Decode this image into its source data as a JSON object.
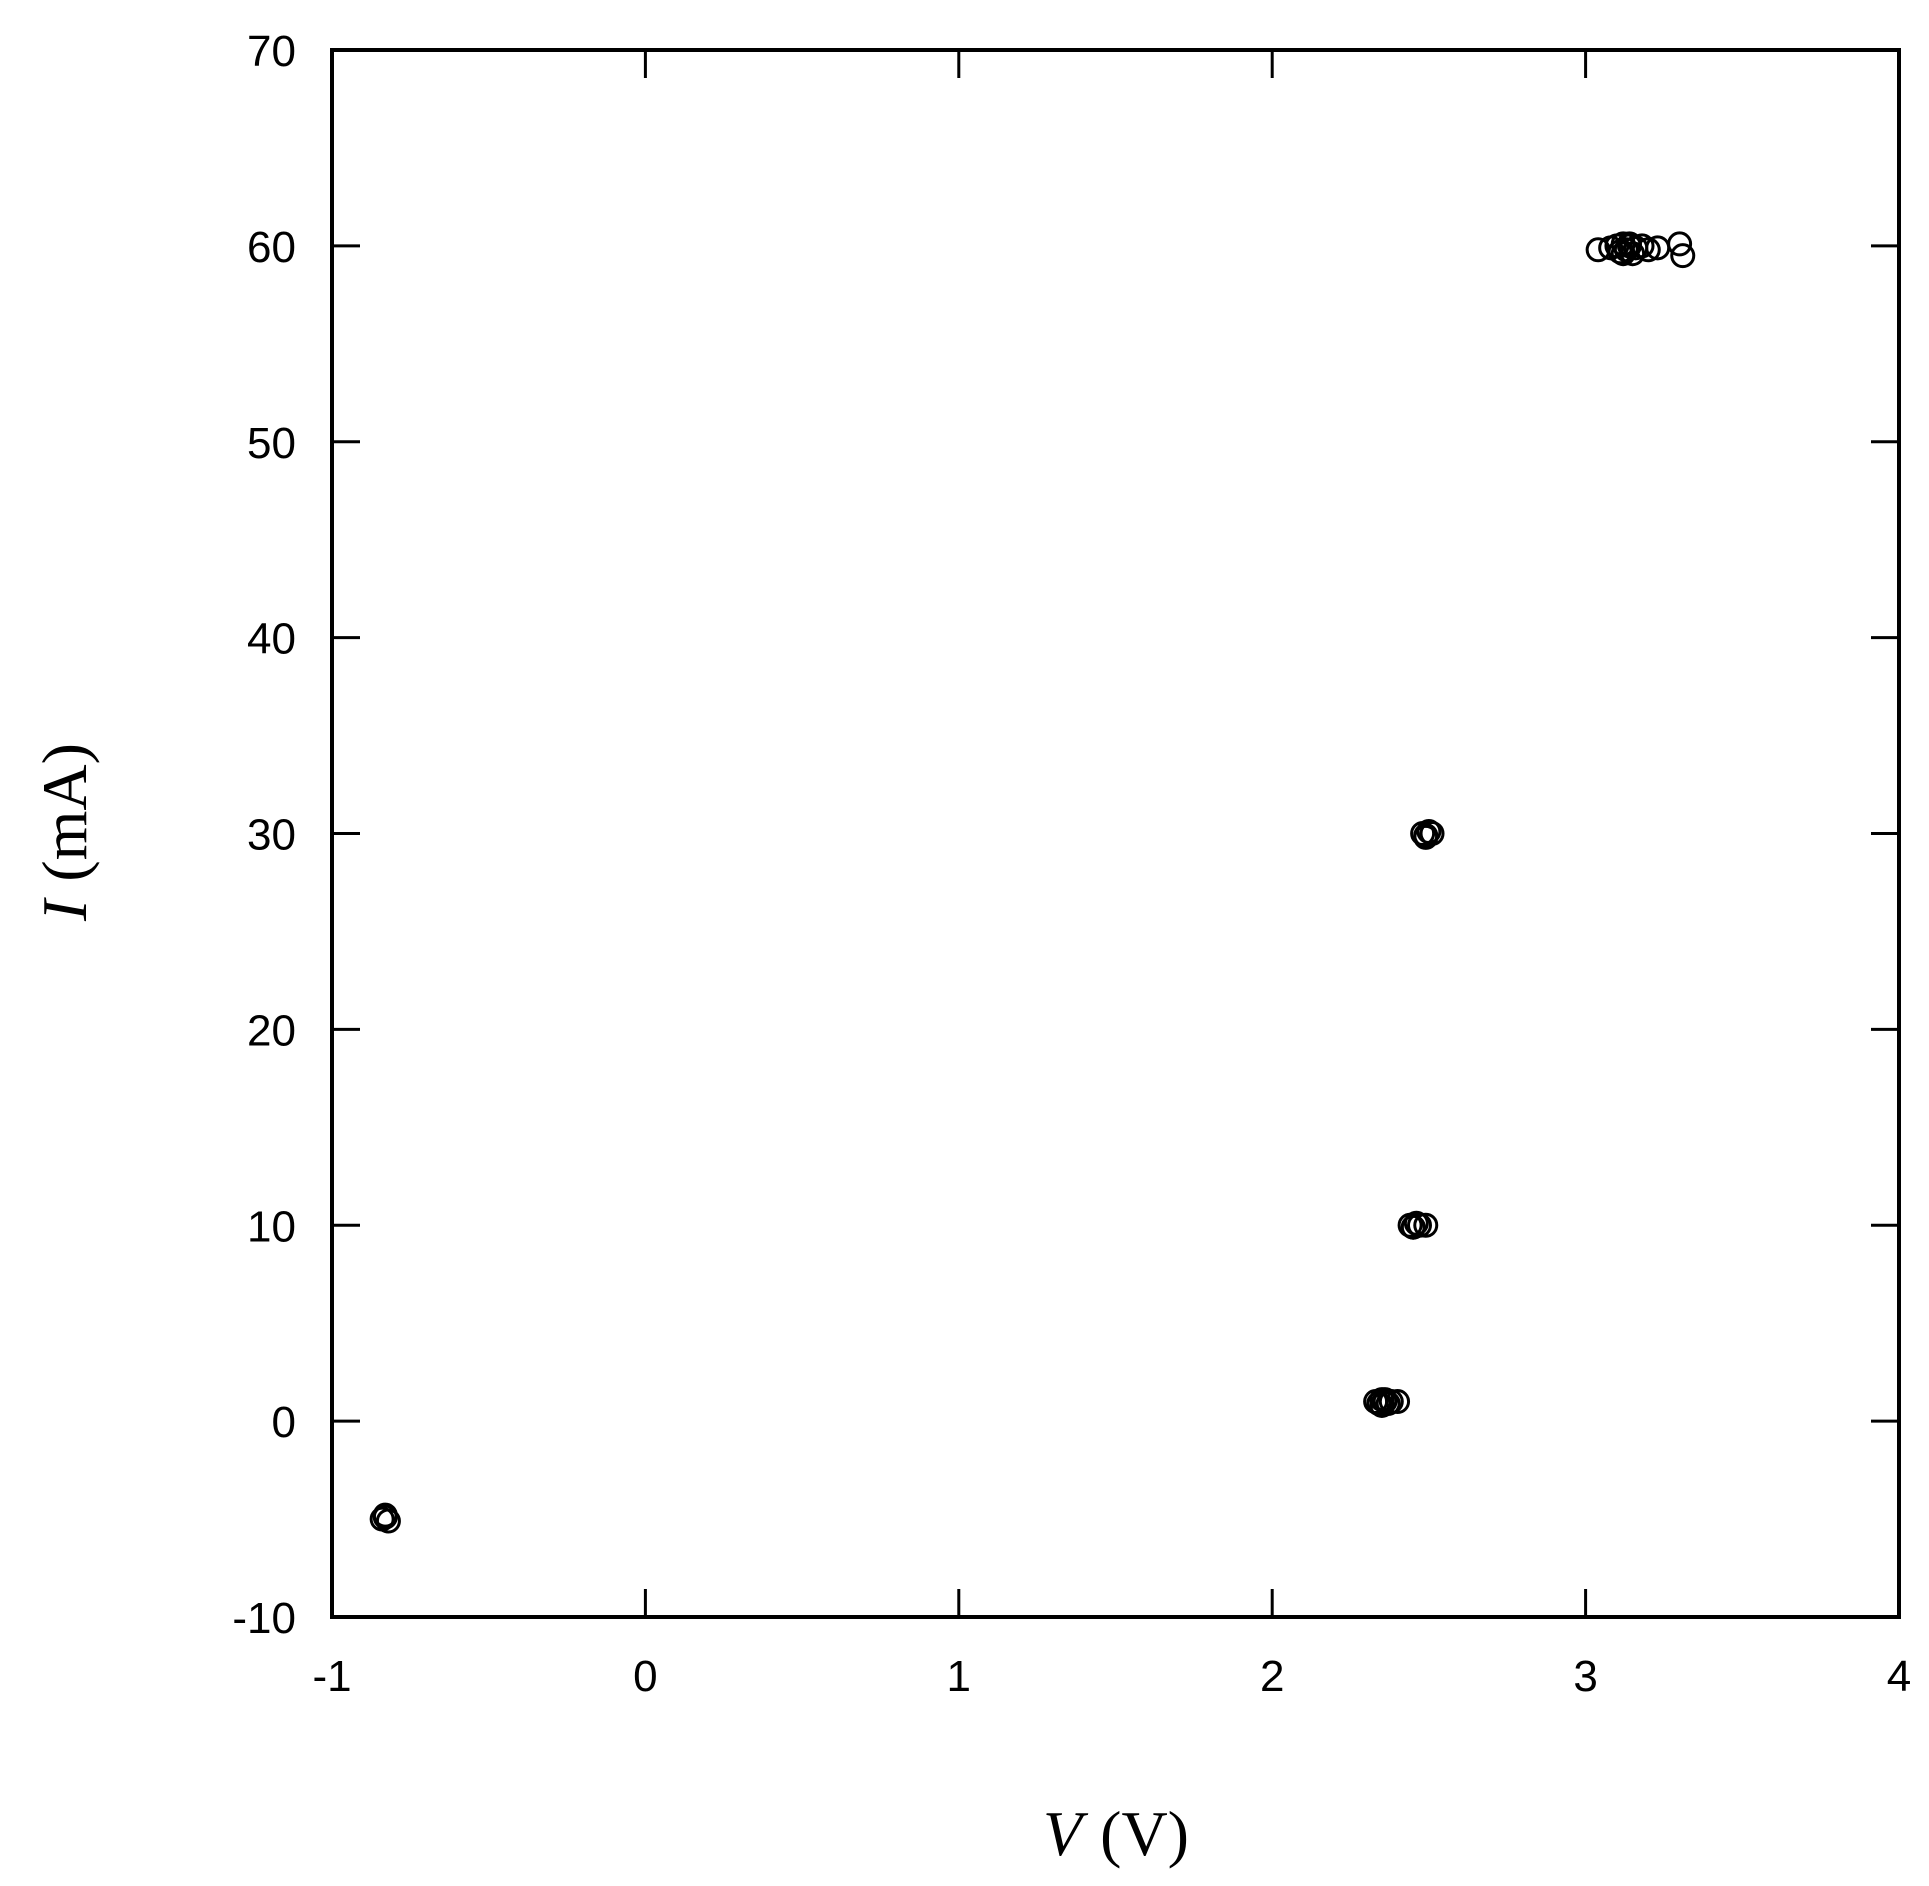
{
  "chart_data": {
    "type": "scatter",
    "title": "",
    "xlabel": {
      "symbol": "V",
      "unit": "(V)"
    },
    "ylabel": {
      "symbol": "I",
      "unit": "(mA)"
    },
    "xlim": [
      -1,
      4
    ],
    "ylim": [
      -10,
      70
    ],
    "xticks": [
      -1,
      0,
      1,
      2,
      3,
      4
    ],
    "yticks": [
      -10,
      0,
      10,
      20,
      30,
      40,
      50,
      60,
      70
    ],
    "grid": false,
    "legend": "none",
    "marker": "open-circle",
    "color": "#000000",
    "series": [
      {
        "x": [
          -0.84,
          -0.83,
          -0.82,
          -0.83,
          2.33,
          2.34,
          2.35,
          2.36,
          2.37,
          2.38,
          2.4,
          2.35,
          2.36,
          2.44,
          2.45,
          2.46,
          2.47,
          2.49,
          2.45,
          2.48,
          2.49,
          2.5,
          2.51,
          2.49,
          3.04,
          3.08,
          3.1,
          3.11,
          3.12,
          3.13,
          3.14,
          3.15,
          3.16,
          3.18,
          3.2,
          3.23,
          3.3,
          3.31,
          3.12,
          3.14
        ],
        "y": [
          -5.0,
          -4.8,
          -5.1,
          -4.9,
          1.0,
          0.9,
          1.1,
          1.0,
          0.9,
          1.0,
          1.0,
          0.8,
          1.1,
          10.0,
          9.9,
          10.1,
          10.0,
          10.0,
          9.9,
          30.0,
          29.9,
          30.1,
          30.0,
          29.8,
          59.8,
          59.9,
          60.0,
          59.7,
          60.1,
          59.8,
          60.0,
          59.6,
          59.9,
          60.0,
          59.8,
          59.9,
          60.1,
          59.5,
          59.6,
          60.1
        ]
      }
    ]
  }
}
